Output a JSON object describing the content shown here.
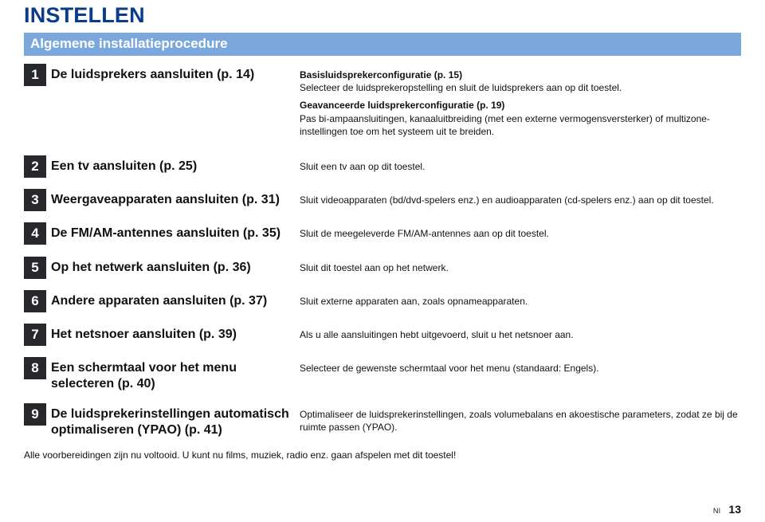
{
  "page": {
    "title": "INSTELLEN",
    "subtitle": "Algemene installatieprocedure",
    "footer_line": "Alle voorbereidingen zijn nu voltooid. U kunt nu films, muziek, radio enz. gaan afspelen met dit toestel!",
    "footer_lang": "Nl",
    "footer_page": "13"
  },
  "steps": [
    {
      "num": "1",
      "title": "De luidsprekers aansluiten (p. 14)",
      "blocks": [
        {
          "bold": "Basisluidsprekerconfiguratie (p. 15)",
          "text": "Selecteer de luidsprekeropstelling en sluit de luidsprekers aan op dit toestel."
        },
        {
          "bold": "Geavanceerde luidsprekerconfiguratie (p. 19)",
          "text": "Pas bi-ampaansluitingen, kanaaluitbreiding (met een externe vermogensversterker) of multizone-instellingen toe om het systeem uit te breiden."
        }
      ]
    },
    {
      "num": "2",
      "title": "Een tv aansluiten (p. 25)",
      "blocks": [
        {
          "text": "Sluit een tv aan op dit toestel."
        }
      ]
    },
    {
      "num": "3",
      "title": "Weergaveapparaten aansluiten (p. 31)",
      "blocks": [
        {
          "text": "Sluit videoapparaten (bd/dvd-spelers enz.) en audioapparaten (cd-spelers enz.) aan op dit toestel."
        }
      ]
    },
    {
      "num": "4",
      "title": "De FM/AM-antennes aansluiten (p. 35)",
      "blocks": [
        {
          "text": "Sluit de meegeleverde FM/AM-antennes aan op dit toestel."
        }
      ]
    },
    {
      "num": "5",
      "title": "Op het netwerk aansluiten (p. 36)",
      "blocks": [
        {
          "text": "Sluit dit toestel aan op het netwerk."
        }
      ]
    },
    {
      "num": "6",
      "title": "Andere apparaten aansluiten (p. 37)",
      "blocks": [
        {
          "text": "Sluit externe apparaten aan, zoals opnameapparaten."
        }
      ]
    },
    {
      "num": "7",
      "title": "Het netsnoer aansluiten (p. 39)",
      "blocks": [
        {
          "text": "Als u alle aansluitingen hebt uitgevoerd, sluit u het netsnoer aan."
        }
      ]
    },
    {
      "num": "8",
      "title": "Een schermtaal voor het menu selecteren (p. 40)",
      "blocks": [
        {
          "text": "Selecteer de gewenste schermtaal voor het menu (standaard: Engels)."
        }
      ]
    },
    {
      "num": "9",
      "title": "De luidsprekerinstellingen automatisch optimaliseren (YPAO) (p. 41)",
      "blocks": [
        {
          "text": "Optimaliseer de luidsprekerinstellingen, zoals volumebalans en akoestische parameters, zodat ze bij de ruimte passen (YPAO)."
        }
      ]
    }
  ]
}
